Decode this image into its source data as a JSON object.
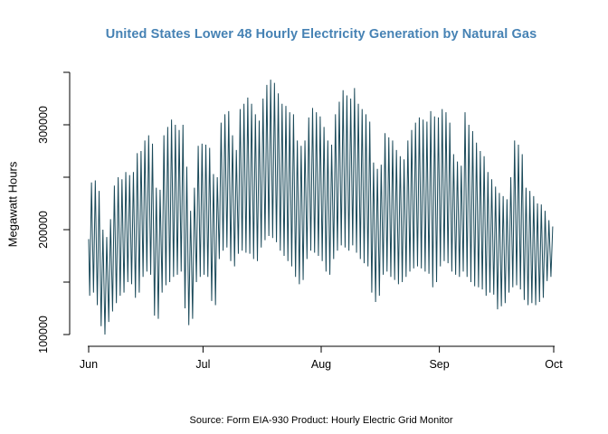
{
  "title": {
    "text": "United States Lower 48 Hourly Electricity Generation by Natural Gas",
    "color": "#4682b4"
  },
  "caption": "Source: Form EIA-930 Product: Hourly Electric Grid Monitor",
  "chart_data": {
    "type": "line",
    "title": "United States Lower 48 Hourly Electricity Generation by Natural Gas",
    "xlabel": "",
    "ylabel": "Megawatt Hours",
    "line_color": "#1b4a5a",
    "axis_color": "#000000",
    "ylim": [
      100000,
      350000
    ],
    "grid": false,
    "legend": "none",
    "y_ticks": [
      100000,
      150000,
      200000,
      250000,
      300000,
      350000
    ],
    "y_labeled_ticks": [
      100000,
      200000,
      300000
    ],
    "y_tick_labels": [
      "100000",
      "200000",
      "300000"
    ],
    "x_ticks": [
      {
        "label": "Jun",
        "day": 0
      },
      {
        "label": "Jul",
        "day": 30
      },
      {
        "label": "Aug",
        "day": 61
      },
      {
        "label": "Sep",
        "day": 92
      },
      {
        "label": "Oct",
        "day": 122
      }
    ],
    "x_range_days": [
      0,
      122
    ],
    "series_description": "Hourly generation oscillating daily between overnight minimum and evening maximum; stored as daily min/max envelope (MWh), Jun 1 - Sep 30",
    "daily_min": [
      137000,
      140000,
      128000,
      108000,
      100000,
      112000,
      122000,
      130000,
      137000,
      140000,
      150000,
      148000,
      135000,
      140000,
      155000,
      160000,
      157000,
      118000,
      115000,
      140000,
      147000,
      150000,
      155000,
      157000,
      160000,
      125000,
      109000,
      115000,
      150000,
      155000,
      157000,
      155000,
      132000,
      128000,
      172000,
      180000,
      183000,
      170000,
      165000,
      177000,
      180000,
      178000,
      177000,
      172000,
      170000,
      183000,
      190000,
      194000,
      192000,
      188000,
      180000,
      175000,
      170000,
      165000,
      155000,
      148000,
      152000,
      172000,
      180000,
      178000,
      175000,
      170000,
      160000,
      157000,
      172000,
      180000,
      185000,
      183000,
      180000,
      185000,
      178000,
      172000,
      168000,
      165000,
      140000,
      131000,
      137000,
      157000,
      160000,
      155000,
      152000,
      148000,
      150000,
      155000,
      160000,
      163000,
      165000,
      163000,
      160000,
      158000,
      145000,
      150000,
      165000,
      170000,
      168000,
      160000,
      157000,
      155000,
      160000,
      155000,
      150000,
      146000,
      145000,
      143000,
      137000,
      140000,
      138000,
      124000,
      127000,
      130000,
      140000,
      145000,
      147000,
      143000,
      133000,
      128000,
      130000,
      128000,
      131000,
      135000,
      151000,
      155000
    ],
    "daily_max": [
      245000,
      247000,
      237000,
      200000,
      193000,
      210000,
      242000,
      250000,
      248000,
      255000,
      252000,
      255000,
      273000,
      275000,
      285000,
      290000,
      282000,
      240000,
      238000,
      290000,
      298000,
      305000,
      300000,
      295000,
      300000,
      260000,
      218000,
      240000,
      280000,
      282000,
      281000,
      278000,
      253000,
      250000,
      302000,
      310000,
      313000,
      290000,
      276000,
      315000,
      320000,
      326000,
      320000,
      310000,
      304000,
      325000,
      338000,
      343000,
      340000,
      330000,
      320000,
      318000,
      312000,
      310000,
      285000,
      280000,
      285000,
      307000,
      316000,
      312000,
      308000,
      298000,
      285000,
      281000,
      310000,
      322000,
      333000,
      328000,
      325000,
      335000,
      320000,
      315000,
      310000,
      303000,
      264000,
      258000,
      262000,
      292000,
      288000,
      285000,
      276000,
      270000,
      267000,
      285000,
      295000,
      302000,
      307000,
      305000,
      303000,
      313000,
      308000,
      307000,
      315000,
      312000,
      302000,
      272000,
      265000,
      261000,
      312000,
      300000,
      294000,
      283000,
      275000,
      270000,
      255000,
      248000,
      241000,
      235000,
      232000,
      229000,
      250000,
      285000,
      281000,
      272000,
      240000,
      237000,
      232000,
      225000,
      224000,
      218000,
      209000,
      203000
    ]
  }
}
